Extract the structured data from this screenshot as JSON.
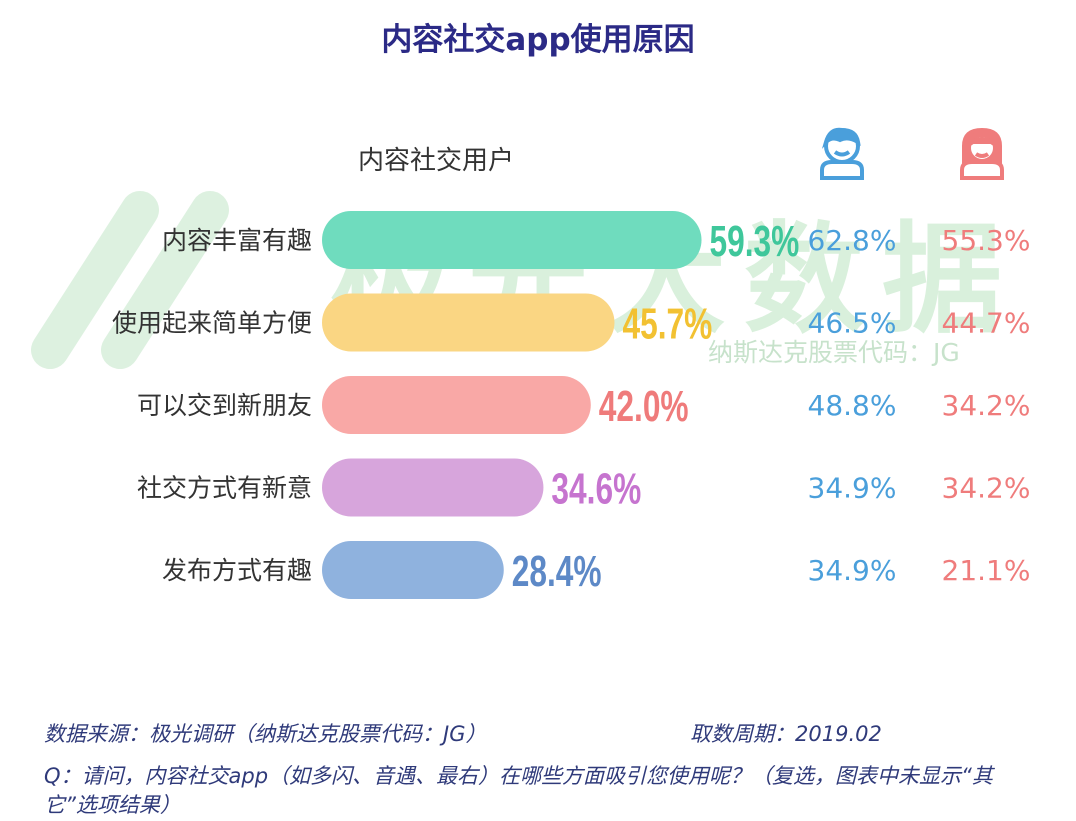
{
  "title": "内容社交app使用原因",
  "subtitle": "内容社交用户",
  "watermark": {
    "main": "极光大数据",
    "sub": "纳斯达克股票代码：JG"
  },
  "icons": {
    "male": "male-user-icon",
    "female": "female-user-icon",
    "male_color": "#4a9fdb",
    "female_color": "#ef7c7c"
  },
  "chart_data": {
    "type": "bar",
    "orientation": "horizontal",
    "categories": [
      "内容丰富有趣",
      "使用起来简单方便",
      "可以交到新朋友",
      "社交方式有新意",
      "发布方式有趣"
    ],
    "values": [
      59.3,
      45.7,
      42.0,
      34.6,
      28.4
    ],
    "value_labels": [
      "59.3%",
      "45.7%",
      "42.0%",
      "34.6%",
      "28.4%"
    ],
    "colors": [
      "#6fdcbe",
      "#fad683",
      "#f9a8a6",
      "#d7a5dc",
      "#8fb2de"
    ],
    "label_colors": [
      "#3fc79b",
      "#f2c132",
      "#ef7b7b",
      "#c674cf",
      "#5d89c7"
    ],
    "xlim": [
      0,
      100
    ],
    "grid": false,
    "legend": "none",
    "male_labels": [
      "62.8%",
      "46.5%",
      "48.8%",
      "34.9%",
      "34.9%"
    ],
    "female_labels": [
      "55.3%",
      "44.7%",
      "34.2%",
      "34.2%",
      "21.1%"
    ]
  },
  "footer": {
    "source": "数据来源：极光调研（纳斯达克股票代码：JG）",
    "period": "取数周期：2019.02",
    "question": "Q：请问，内容社交app（如多闪、音遇、最右）在哪些方面吸引您使用呢？（复选，图表中未显示“其它”选项结果）"
  }
}
